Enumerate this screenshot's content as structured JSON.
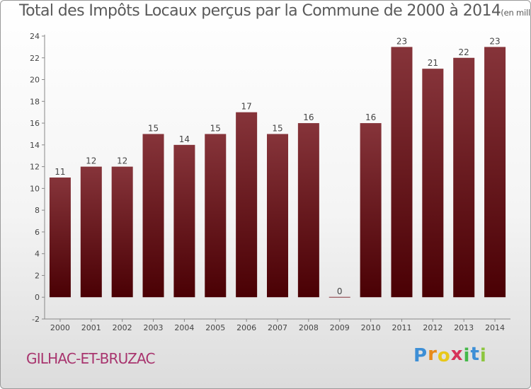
{
  "title": "Total des Impôts Locaux perçus par la Commune de 2000 à 2014",
  "unit": "(en milliers d'€)",
  "commune": "GILHAC-ET-BRUZAC",
  "logo": {
    "letters": [
      "P",
      "r",
      "o",
      "x",
      "i",
      "t",
      "i"
    ],
    "colors": [
      "#3d8fd6",
      "#e88a1a",
      "#e8c81a",
      "#d6335a",
      "#45b84a",
      "#3d8fd6",
      "#8dc63f"
    ]
  },
  "colors": {
    "bar_top": "#86343a",
    "bar_bottom": "#4a0004",
    "text": "#444444"
  },
  "chart_data": {
    "type": "bar",
    "title": "Total des Impôts Locaux perçus par la Commune de 2000 à 2014",
    "xlabel": "",
    "ylabel": "",
    "ylim": [
      -2,
      24
    ],
    "yticks": [
      -2,
      0,
      2,
      4,
      6,
      8,
      10,
      12,
      14,
      16,
      18,
      20,
      22,
      24
    ],
    "grid": false,
    "legend": "none",
    "categories": [
      "2000",
      "2001",
      "2002",
      "2003",
      "2004",
      "2005",
      "2006",
      "2007",
      "2008",
      "2009",
      "2010",
      "2011",
      "2012",
      "2013",
      "2014"
    ],
    "values": [
      11,
      12,
      12,
      15,
      14,
      15,
      17,
      15,
      16,
      0,
      16,
      23,
      21,
      22,
      23
    ]
  }
}
